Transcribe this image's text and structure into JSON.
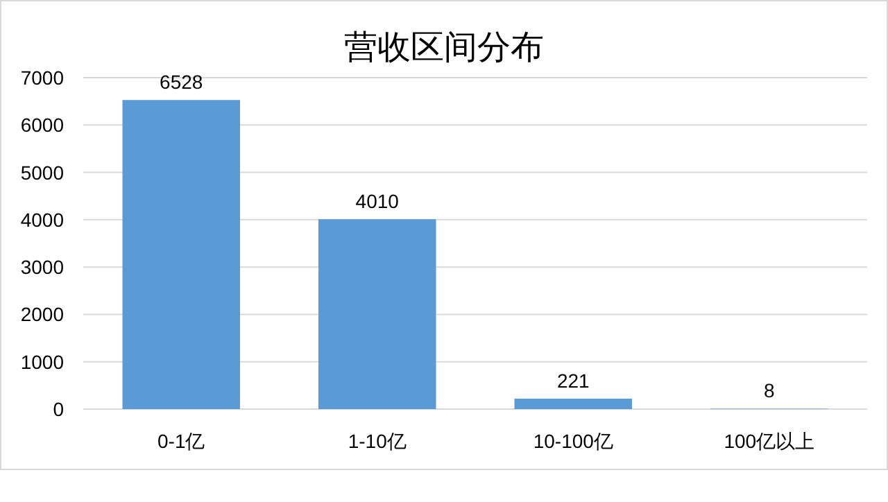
{
  "chart_data": {
    "type": "bar",
    "title": "营收区间分布",
    "categories": [
      "0-1亿",
      "1-10亿",
      "10-100亿",
      "100亿以上"
    ],
    "values": [
      6528,
      4010,
      221,
      8
    ],
    "color": "#5b9bd5",
    "ylim": [
      0,
      7000
    ],
    "yticks": [
      0,
      1000,
      2000,
      3000,
      4000,
      5000,
      6000,
      7000
    ],
    "grid": "y",
    "data_labels": true
  }
}
